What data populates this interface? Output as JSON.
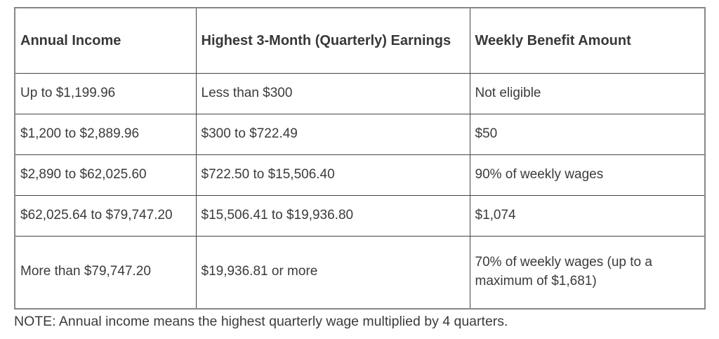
{
  "table": {
    "headers": [
      "Annual Income",
      "Highest 3-Month (Quarterly) Earnings",
      "Weekly Benefit Amount"
    ],
    "rows": [
      [
        "Up to $1,199.96",
        "Less than $300",
        "Not eligible"
      ],
      [
        "$1,200 to $2,889.96",
        "$300 to $722.49",
        "$50"
      ],
      [
        "$2,890 to $62,025.60",
        "$722.50 to $15,506.40",
        "90% of weekly wages"
      ],
      [
        "$62,025.64 to $79,747.20",
        "$15,506.41 to $19,936.80",
        "$1,074"
      ],
      [
        "More than $79,747.20",
        "$19,936.81 or more",
        "70% of weekly wages (up to a maximum of $1,681)"
      ]
    ]
  },
  "note": "NOTE: Annual income means the highest quarterly wage multiplied by 4 quarters.",
  "colors": {
    "text": "#3b3b3b",
    "border_outer": "#878787",
    "border_inner": "#454545",
    "background": "#ffffff"
  }
}
